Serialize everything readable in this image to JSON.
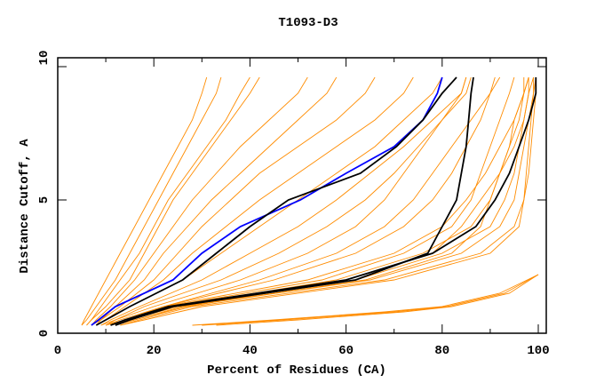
{
  "chart_data": {
    "type": "line",
    "title": "T1093-D3",
    "xlabel": "Percent of Residues (CA)",
    "ylabel": "Distance Cutoff, A",
    "xlim": [
      0,
      100
    ],
    "ylim": [
      0,
      10
    ],
    "x_ticks": [
      "0",
      "20",
      "40",
      "60",
      "80",
      "100"
    ],
    "y_ticks": [
      "0",
      "5",
      "10"
    ],
    "grid": false,
    "colors": {
      "other_models": "#ff8c00",
      "highlight_black": "#000000",
      "highlight_blue": "#0000ff"
    },
    "y_levels": [
      0.3,
      0.5,
      1,
      2,
      3,
      4,
      5,
      6,
      7,
      8,
      9,
      9.6
    ],
    "orange_series": [
      {
        "x": [
          5,
          5.5,
          7,
          10,
          13,
          16,
          19,
          22,
          25,
          28,
          30,
          31
        ]
      },
      {
        "x": [
          5,
          6,
          8,
          12,
          15,
          18,
          21,
          24,
          27,
          30,
          33,
          34
        ]
      },
      {
        "x": [
          6,
          7,
          9,
          13,
          17,
          20,
          23,
          27,
          31,
          35,
          38,
          40
        ]
      },
      {
        "x": [
          6,
          7,
          10,
          15,
          18,
          21,
          24,
          28,
          32,
          36,
          40,
          42
        ]
      },
      {
        "x": [
          7,
          8,
          11,
          16,
          20,
          24,
          28,
          33,
          38,
          44,
          50,
          52
        ]
      },
      {
        "x": [
          7,
          9,
          12,
          18,
          22,
          27,
          32,
          38,
          44,
          50,
          56,
          58
        ]
      },
      {
        "x": [
          8,
          9,
          13,
          20,
          25,
          30,
          36,
          42,
          50,
          58,
          64,
          66
        ]
      },
      {
        "x": [
          8,
          10,
          14,
          22,
          28,
          35,
          42,
          50,
          58,
          66,
          72,
          74
        ]
      },
      {
        "x": [
          8,
          10,
          15,
          26,
          34,
          42,
          50,
          58,
          66,
          72,
          78,
          80
        ]
      },
      {
        "x": [
          9,
          11,
          17,
          30,
          40,
          50,
          58,
          65,
          72,
          78,
          84,
          85
        ]
      },
      {
        "x": [
          9,
          12,
          18,
          34,
          46,
          56,
          64,
          70,
          75,
          80,
          85,
          86
        ]
      },
      {
        "x": [
          10,
          12,
          20,
          38,
          52,
          62,
          68,
          72,
          76,
          80,
          84,
          85
        ]
      },
      {
        "x": [
          10,
          13,
          22,
          42,
          58,
          68,
          74,
          78,
          82,
          86,
          90,
          92
        ]
      },
      {
        "x": [
          10,
          14,
          22,
          45,
          62,
          72,
          78,
          82,
          85,
          88,
          90,
          91
        ]
      },
      {
        "x": [
          11,
          14,
          23,
          55,
          72,
          82,
          86,
          88,
          90,
          92,
          94,
          95
        ]
      },
      {
        "x": [
          11,
          15,
          24,
          58,
          76,
          86,
          90,
          92,
          94,
          95,
          97,
          98
        ]
      },
      {
        "x": [
          12,
          15,
          25,
          62,
          80,
          90,
          93,
          95,
          96,
          97,
          98,
          98
        ]
      },
      {
        "x": [
          12,
          16,
          26,
          65,
          84,
          92,
          95,
          96,
          97,
          98,
          99,
          99
        ]
      },
      {
        "x": [
          13,
          17,
          28,
          68,
          88,
          95,
          97,
          98,
          98.5,
          99,
          99.5,
          99.5
        ]
      },
      {
        "x": [
          12,
          16,
          27,
          60,
          78,
          84,
          88,
          92,
          95,
          97,
          98,
          99
        ]
      },
      {
        "x": [
          11,
          14,
          22,
          52,
          70,
          80,
          85,
          89,
          92,
          95,
          97,
          98
        ]
      },
      {
        "x": [
          13,
          18,
          30,
          70,
          90,
          96,
          97,
          97.5,
          98,
          98.5,
          99,
          99.5
        ]
      },
      {
        "x": [
          12,
          16,
          26,
          64,
          82,
          88,
          90,
          92,
          94,
          96,
          97,
          97
        ]
      },
      {
        "x": [
          28,
          45,
          68,
          80,
          92,
          100
        ],
        "y": [
          0.3,
          0.5,
          0.8,
          1.0,
          1.5,
          2.2
        ]
      },
      {
        "x": [
          30,
          47,
          70,
          81,
          93,
          100
        ],
        "y": [
          0.3,
          0.5,
          0.8,
          1.0,
          1.5,
          2.2
        ]
      },
      {
        "x": [
          33,
          50,
          72,
          82,
          94,
          100
        ],
        "y": [
          0.3,
          0.5,
          0.8,
          1.0,
          1.5,
          2.2
        ]
      }
    ],
    "highlight_series": [
      {
        "name": "blue",
        "color": "#0000ff",
        "x": [
          7,
          8.5,
          12,
          24,
          30,
          38,
          50.5,
          60,
          70,
          76,
          79,
          80
        ]
      },
      {
        "name": "black-1",
        "color": "#000000",
        "x": [
          8,
          10,
          15,
          26,
          33,
          40,
          48,
          63,
          70.5,
          76,
          80,
          83
        ]
      },
      {
        "name": "black-2",
        "color": "#000000",
        "x": [
          11,
          14,
          23,
          60,
          78,
          87,
          91,
          94,
          96,
          98,
          99.5,
          99.5
        ]
      },
      {
        "name": "black-3",
        "color": "#000000",
        "x": [
          12,
          15,
          24,
          62,
          77,
          80,
          83,
          84,
          85,
          85.5,
          86,
          86.5
        ]
      }
    ]
  }
}
